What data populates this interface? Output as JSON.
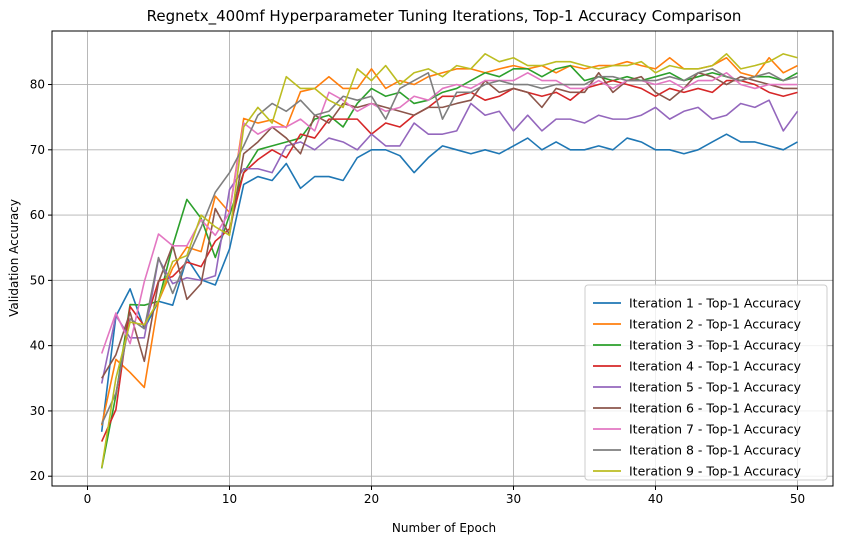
{
  "chart_data": {
    "type": "line",
    "title": "Regnetx_400mf Hyperparameter Tuning Iterations, Top-1 Accuracy Comparison",
    "xlabel": "Number of Epoch",
    "ylabel": "Validation Accuracy",
    "xlim": [
      -2.5,
      52.5
    ],
    "ylim": [
      18.5,
      88.2
    ],
    "xticks": [
      0,
      10,
      20,
      30,
      40,
      50
    ],
    "yticks": [
      20,
      30,
      40,
      50,
      60,
      70,
      80
    ],
    "grid": true,
    "legend_position": "lower-right",
    "x": [
      1,
      2,
      3,
      4,
      5,
      6,
      7,
      8,
      9,
      10,
      11,
      12,
      13,
      14,
      15,
      16,
      17,
      18,
      19,
      20,
      21,
      22,
      23,
      24,
      25,
      26,
      27,
      28,
      29,
      30,
      31,
      32,
      33,
      34,
      35,
      36,
      37,
      38,
      39,
      40,
      41,
      42,
      43,
      44,
      45,
      46,
      47,
      48,
      49,
      50
    ],
    "series": [
      {
        "name": "Iteration 1 - Top-1 Accuracy",
        "color": "#1f77b4",
        "values": [
          26.8,
          44.5,
          48.7,
          42.6,
          46.8,
          46.2,
          53.4,
          50.1,
          49.3,
          54.8,
          64.7,
          65.9,
          65.3,
          67.9,
          64.1,
          65.9,
          65.9,
          65.3,
          68.8,
          70.0,
          70.0,
          69.1,
          66.5,
          68.8,
          70.6,
          70.0,
          69.4,
          70.0,
          69.4,
          70.6,
          71.8,
          70.0,
          71.2,
          70.0,
          70.0,
          70.6,
          70.0,
          71.8,
          71.2,
          70.0,
          70.0,
          69.4,
          70.0,
          71.2,
          72.4,
          71.2,
          71.2,
          70.6,
          70.0,
          71.2
        ]
      },
      {
        "name": "Iteration 2 - Top-1 Accuracy",
        "color": "#ff7f0e",
        "values": [
          27.8,
          37.9,
          35.9,
          33.6,
          46.8,
          51.9,
          55.1,
          54.4,
          62.9,
          60.4,
          74.8,
          74.1,
          74.6,
          73.4,
          78.9,
          79.4,
          81.2,
          79.4,
          79.4,
          82.4,
          79.4,
          80.6,
          80.0,
          81.2,
          81.8,
          82.4,
          82.4,
          81.8,
          82.4,
          82.9,
          82.4,
          82.9,
          81.8,
          82.9,
          82.4,
          82.9,
          82.9,
          83.5,
          82.9,
          82.4,
          84.1,
          82.4,
          82.4,
          82.9,
          84.1,
          81.8,
          81.2,
          84.1,
          81.8,
          82.9
        ]
      },
      {
        "name": "Iteration 3 - Top-1 Accuracy",
        "color": "#2ca02c",
        "values": [
          21.2,
          32.4,
          46.3,
          46.2,
          46.8,
          55.3,
          62.4,
          59.5,
          53.5,
          60.0,
          66.5,
          70.0,
          70.6,
          71.2,
          71.8,
          74.7,
          75.3,
          73.5,
          77.1,
          79.4,
          78.2,
          78.8,
          77.1,
          77.6,
          78.8,
          79.4,
          80.6,
          81.8,
          81.2,
          82.4,
          82.4,
          81.2,
          82.4,
          82.9,
          80.6,
          81.2,
          80.6,
          81.2,
          80.6,
          81.2,
          81.8,
          80.6,
          81.2,
          81.8,
          81.2,
          80.6,
          81.2,
          81.2,
          80.6,
          81.8
        ]
      },
      {
        "name": "Iteration 4 - Top-1 Accuracy",
        "color": "#d62728",
        "values": [
          25.3,
          30.2,
          46.0,
          43.0,
          49.9,
          50.6,
          52.8,
          52.1,
          56.0,
          57.9,
          66.5,
          68.5,
          70.0,
          68.8,
          72.4,
          71.8,
          74.7,
          74.7,
          74.7,
          72.4,
          74.1,
          73.5,
          75.3,
          76.5,
          78.2,
          78.2,
          78.8,
          77.6,
          78.2,
          79.4,
          78.8,
          78.2,
          78.8,
          77.6,
          79.4,
          80.0,
          80.6,
          80.0,
          79.4,
          78.2,
          79.4,
          78.8,
          79.4,
          78.8,
          80.6,
          80.6,
          80.0,
          78.8,
          78.2,
          78.8
        ]
      },
      {
        "name": "Iteration 5 - Top-1 Accuracy",
        "color": "#9467bd",
        "values": [
          34.2,
          44.6,
          41.2,
          41.2,
          53.3,
          49.5,
          50.4,
          50.0,
          50.7,
          63.9,
          67.1,
          67.1,
          66.5,
          70.6,
          71.2,
          70.0,
          71.8,
          71.2,
          70.0,
          72.4,
          70.6,
          70.6,
          74.1,
          72.4,
          72.4,
          72.9,
          77.1,
          75.3,
          75.9,
          72.9,
          75.3,
          72.9,
          74.7,
          74.7,
          74.1,
          75.3,
          74.7,
          74.7,
          75.3,
          76.5,
          74.7,
          75.9,
          76.5,
          74.7,
          75.3,
          77.1,
          76.5,
          77.6,
          72.9,
          75.9
        ]
      },
      {
        "name": "Iteration 6 - Top-1 Accuracy",
        "color": "#8c564b",
        "values": [
          35.0,
          38.6,
          45.1,
          37.6,
          49.7,
          55.4,
          47.1,
          49.5,
          61.0,
          57.0,
          69.4,
          71.2,
          73.5,
          71.8,
          69.4,
          75.3,
          74.1,
          77.1,
          76.5,
          77.1,
          76.5,
          75.9,
          75.3,
          76.5,
          76.5,
          77.1,
          77.6,
          80.6,
          78.8,
          79.4,
          78.8,
          76.5,
          79.4,
          78.8,
          78.8,
          81.8,
          78.8,
          80.6,
          81.2,
          78.8,
          77.6,
          79.4,
          81.8,
          81.2,
          80.0,
          81.2,
          80.6,
          80.0,
          79.4,
          79.4
        ]
      },
      {
        "name": "Iteration 7 - Top-1 Accuracy",
        "color": "#e377c2",
        "values": [
          38.8,
          45.0,
          40.3,
          49.8,
          57.1,
          55.3,
          55.3,
          59.3,
          56.9,
          60.4,
          74.1,
          72.4,
          73.5,
          73.5,
          74.7,
          72.9,
          78.8,
          77.6,
          75.9,
          77.1,
          75.9,
          76.5,
          78.2,
          77.6,
          79.4,
          80.0,
          79.4,
          80.6,
          80.6,
          80.6,
          81.8,
          80.6,
          80.6,
          79.4,
          79.4,
          80.6,
          79.4,
          80.6,
          80.6,
          80.0,
          80.6,
          79.4,
          80.6,
          80.6,
          81.8,
          80.0,
          79.4,
          80.0,
          80.0,
          80.0
        ]
      },
      {
        "name": "Iteration 8 - Top-1 Accuracy",
        "color": "#7f7f7f",
        "values": [
          28.0,
          32.7,
          44.1,
          42.6,
          53.5,
          48.0,
          53.3,
          58.1,
          63.5,
          66.5,
          70.6,
          75.3,
          77.1,
          75.9,
          77.6,
          75.3,
          75.9,
          78.2,
          77.6,
          78.2,
          74.7,
          79.4,
          80.6,
          81.8,
          74.7,
          78.8,
          78.8,
          80.0,
          80.6,
          80.0,
          80.0,
          79.4,
          80.0,
          80.0,
          80.0,
          81.2,
          81.2,
          80.6,
          80.6,
          80.6,
          81.2,
          80.6,
          81.8,
          82.4,
          81.2,
          80.6,
          81.2,
          81.8,
          80.6,
          81.2
        ]
      },
      {
        "name": "Iteration 9 - Top-1 Accuracy",
        "color": "#bcbd22",
        "values": [
          21.3,
          35.0,
          43.6,
          43.2,
          46.9,
          52.9,
          53.8,
          60.0,
          58.2,
          56.9,
          73.5,
          76.5,
          74.1,
          81.2,
          79.4,
          79.4,
          77.6,
          76.5,
          82.4,
          80.6,
          82.9,
          80.0,
          81.8,
          82.4,
          81.2,
          82.9,
          82.4,
          84.7,
          83.5,
          84.1,
          82.9,
          82.9,
          83.5,
          83.5,
          82.9,
          82.4,
          82.9,
          82.9,
          83.5,
          81.8,
          82.9,
          82.4,
          82.4,
          82.9,
          84.7,
          82.4,
          82.9,
          83.5,
          84.7,
          84.1
        ]
      }
    ]
  }
}
